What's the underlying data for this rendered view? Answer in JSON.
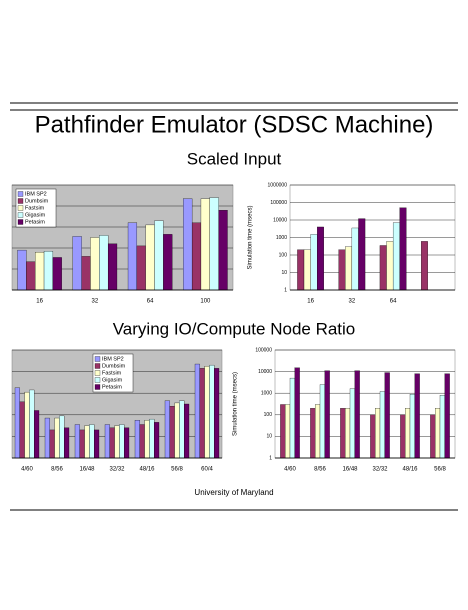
{
  "header": {
    "title": "Pathfinder Emulator (SDSC Machine)"
  },
  "sections": [
    {
      "heading": "Scaled Input"
    },
    {
      "heading": "Varying IO/Compute Node Ratio"
    }
  ],
  "footer": "University of Maryland",
  "chart_data": [
    {
      "type": "bar",
      "categories": [
        "16",
        "32",
        "64",
        "100"
      ],
      "ylim": [
        0,
        100
      ],
      "yticks": [
        0,
        20,
        40,
        60,
        80,
        100
      ],
      "show_tick_labels": false,
      "grid": true,
      "plot_color": "#c0c0c0",
      "legend": "upper left",
      "series": [
        {
          "name": "IBM SP2",
          "color": "#9999ff",
          "values": [
            38,
            51,
            64,
            87
          ]
        },
        {
          "name": "Dumbsim",
          "color": "#993366",
          "values": [
            27,
            32,
            42,
            64
          ]
        },
        {
          "name": "Fastsim",
          "color": "#ffffcc",
          "values": [
            36,
            50,
            62,
            87
          ]
        },
        {
          "name": "Gigasim",
          "color": "#ccffff",
          "values": [
            37,
            52,
            66,
            88
          ]
        },
        {
          "name": "Petasim",
          "color": "#660066",
          "values": [
            31,
            44,
            53,
            76
          ]
        }
      ]
    },
    {
      "type": "bar",
      "categories": [
        "16",
        "32",
        "64",
        null
      ],
      "log": true,
      "ylim": [
        1,
        1000000
      ],
      "yticks": [
        1,
        10,
        100,
        1000,
        10000,
        100000,
        1000000
      ],
      "show_tick_labels": true,
      "grid": true,
      "plot_color": "#ffffff",
      "ylabel": "Simulation time (msecs)",
      "series": [
        {
          "color": "#993366",
          "values": [
            200,
            200,
            350,
            600
          ]
        },
        {
          "color": "#ffffcc",
          "values": [
            200,
            300,
            600,
            null
          ]
        },
        {
          "color": "#ccffff",
          "values": [
            1500,
            3500,
            7000,
            null
          ]
        },
        {
          "color": "#660066",
          "values": [
            4000,
            12000,
            50000,
            null
          ]
        }
      ]
    },
    {
      "type": "bar",
      "categories": [
        "4/60",
        "8/56",
        "16/48",
        "32/32",
        "48/16",
        "56/8",
        "60/4"
      ],
      "ylim": [
        0,
        100
      ],
      "yticks": [
        0,
        20,
        40,
        60,
        80,
        100
      ],
      "show_tick_labels": false,
      "grid": true,
      "plot_color": "#c0c0c0",
      "legend": "upper center",
      "series": [
        {
          "name": "IBM SP2",
          "color": "#9999ff",
          "values": [
            65,
            37,
            31,
            31,
            35,
            53,
            87
          ]
        },
        {
          "name": "Dumbsim",
          "color": "#993366",
          "values": [
            52,
            26,
            26,
            28,
            31,
            48,
            83
          ]
        },
        {
          "name": "Fastsim",
          "color": "#ffffcc",
          "values": [
            61,
            37,
            30,
            30,
            35,
            51,
            85
          ]
        },
        {
          "name": "Gigasim",
          "color": "#ccffff",
          "values": [
            63,
            39,
            31,
            31,
            36,
            53,
            86
          ]
        },
        {
          "name": "Petasim",
          "color": "#660066",
          "values": [
            44,
            28,
            26,
            28,
            33,
            50,
            83
          ]
        }
      ]
    },
    {
      "type": "bar",
      "categories": [
        "4/60",
        "8/56",
        "16/48",
        "32/32",
        "48/16",
        "56/8"
      ],
      "log": true,
      "ylim": [
        1,
        100000
      ],
      "yticks": [
        1,
        10,
        100,
        1000,
        10000,
        100000
      ],
      "show_tick_labels": true,
      "grid": true,
      "plot_color": "#ffffff",
      "ylabel": "Simulation time (msecs)",
      "series": [
        {
          "color": "#993366",
          "values": [
            300,
            200,
            200,
            100,
            100,
            100
          ]
        },
        {
          "color": "#ffffcc",
          "values": [
            300,
            300,
            200,
            200,
            200,
            200
          ]
        },
        {
          "color": "#ccffff",
          "values": [
            5000,
            2500,
            1600,
            1200,
            900,
            800
          ]
        },
        {
          "color": "#660066",
          "values": [
            15000,
            11000,
            11000,
            9000,
            8000,
            8000
          ]
        }
      ]
    }
  ]
}
